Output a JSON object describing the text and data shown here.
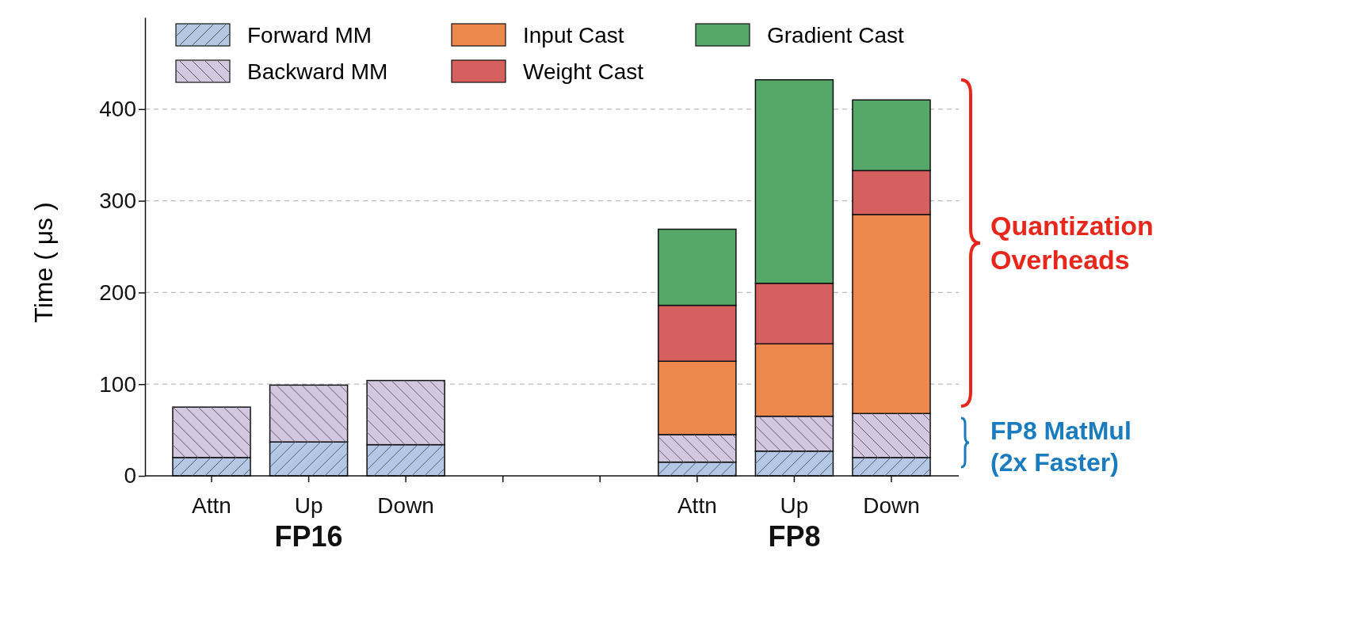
{
  "chart_data": {
    "type": "bar",
    "stacked": true,
    "ylabel": "Time ( μs )",
    "categories": [
      "Attn",
      "Up",
      "Down",
      null,
      null,
      "Attn",
      "Up",
      "Down"
    ],
    "series": [
      {
        "name": "Forward MM",
        "color": "#b4c8e6",
        "values": [
          20,
          37,
          34,
          0,
          0,
          15,
          27,
          20
        ]
      },
      {
        "name": "Backward MM",
        "color": "#d4c8e0",
        "values": [
          55,
          62,
          70,
          0,
          0,
          30,
          38,
          48
        ]
      },
      {
        "name": "Input Cast",
        "color": "#ed884c",
        "values": [
          0,
          0,
          0,
          0,
          0,
          80,
          79,
          217
        ]
      },
      {
        "name": "Weight Cast",
        "color": "#d65f5f",
        "values": [
          0,
          0,
          0,
          0,
          0,
          61,
          66,
          48
        ]
      },
      {
        "name": "Gradient Cast",
        "color": "#55a868",
        "values": [
          0,
          0,
          0,
          0,
          0,
          83,
          222,
          77
        ]
      }
    ],
    "ylim": [
      0,
      500
    ],
    "yticks": [
      0,
      100,
      200,
      300,
      400
    ],
    "grid": "y",
    "legend": "top",
    "annotations": [
      "FP16",
      "FP8",
      "Quantization Overheads",
      "FP8 MatMul (2x Faster)"
    ]
  }
}
